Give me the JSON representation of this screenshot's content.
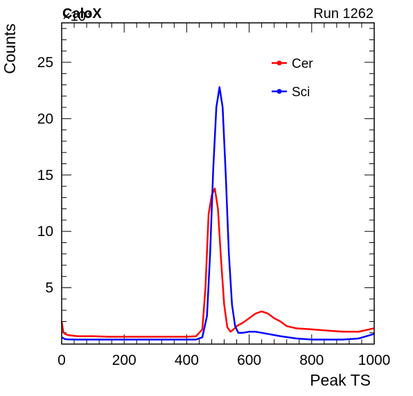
{
  "header": {
    "brand": "CaloX",
    "run_label": "Run 1262",
    "exponent_label": "×10³"
  },
  "chart_data": {
    "type": "line",
    "xlabel": "Peak TS",
    "ylabel": "Counts",
    "xlim": [
      0,
      1000
    ],
    "ylim": [
      0,
      28.5
    ],
    "y_multiplier": "×10³",
    "x_ticks": [
      0,
      200,
      400,
      600,
      800,
      1000
    ],
    "y_ticks": [
      5,
      10,
      15,
      20,
      25
    ],
    "grid": false,
    "legend_position": "top-right",
    "series": [
      {
        "name": "Cer",
        "color": "#ff0000",
        "x": [
          0,
          5,
          10,
          20,
          50,
          100,
          150,
          200,
          250,
          300,
          350,
          400,
          430,
          450,
          460,
          470,
          480,
          490,
          500,
          510,
          520,
          530,
          540,
          550,
          560,
          580,
          600,
          620,
          640,
          660,
          680,
          700,
          720,
          750,
          800,
          850,
          900,
          950,
          1000
        ],
        "y": [
          2.0,
          1.1,
          0.9,
          0.8,
          0.7,
          0.7,
          0.65,
          0.65,
          0.65,
          0.65,
          0.65,
          0.65,
          0.7,
          1.3,
          5.0,
          11.5,
          13.2,
          13.8,
          12.0,
          7.5,
          3.5,
          1.5,
          1.1,
          1.3,
          1.6,
          1.9,
          2.3,
          2.7,
          2.9,
          2.7,
          2.3,
          2.0,
          1.6,
          1.4,
          1.3,
          1.2,
          1.1,
          1.1,
          1.4
        ]
      },
      {
        "name": "Sci",
        "color": "#0000ff",
        "x": [
          0,
          10,
          20,
          50,
          100,
          150,
          200,
          250,
          300,
          350,
          400,
          430,
          450,
          465,
          475,
          485,
          495,
          505,
          515,
          525,
          535,
          545,
          555,
          565,
          580,
          600,
          620,
          640,
          660,
          700,
          750,
          800,
          850,
          900,
          950,
          1000
        ],
        "y": [
          0.6,
          0.45,
          0.42,
          0.4,
          0.4,
          0.4,
          0.4,
          0.4,
          0.4,
          0.4,
          0.4,
          0.4,
          0.6,
          2.5,
          8.0,
          15.5,
          21.0,
          22.8,
          21.0,
          15.0,
          8.0,
          3.5,
          1.6,
          1.0,
          1.0,
          1.1,
          1.1,
          1.0,
          0.9,
          0.7,
          0.5,
          0.4,
          0.4,
          0.4,
          0.5,
          0.9
        ]
      }
    ]
  }
}
